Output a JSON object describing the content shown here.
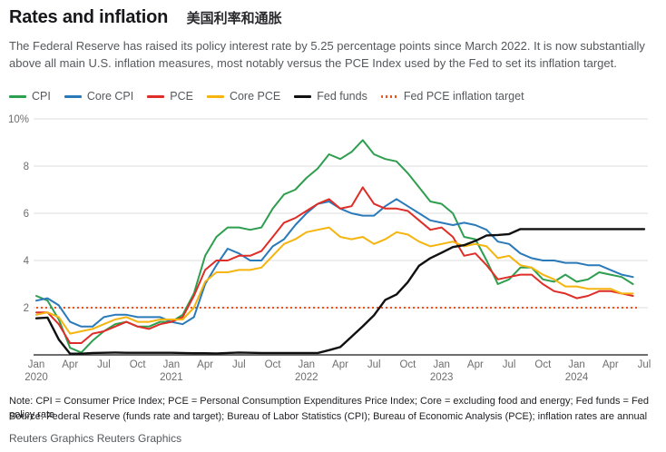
{
  "header": {
    "title": "Rates and inflation",
    "title_zh": "美国利率和通胀",
    "description": "The Federal Reserve has raised its policy interest rate by 5.25 percentage points since March 2022. It is now substantially above all main U.S. inflation measures, most notably versus the PCE Index used by the Fed to set its inflation target."
  },
  "footer": {
    "note": "Note: CPI = Consumer Price Index; PCE = Personal Consumption Expenditures Price Index; Core = excluding food and energy; Fed funds = Fed policy rate",
    "source": "Source: Federal Reserve (funds rate and target); Bureau of Labor Statistics (CPI); Bureau of Economic Analysis (PCE); inflation rates are annual",
    "credit": "Reuters Graphics Reuters Graphics"
  },
  "chart_data": {
    "type": "line",
    "x_unit": "month",
    "x_start": "2020-01",
    "x_end": "2024-07",
    "ylim": [
      0,
      10
    ],
    "grid": true,
    "legend_position": "top",
    "yticks": [
      {
        "value": 10,
        "label": "10%"
      },
      {
        "value": 8,
        "label": "8"
      },
      {
        "value": 6,
        "label": "6"
      },
      {
        "value": 4,
        "label": "4"
      },
      {
        "value": 2,
        "label": "2"
      }
    ],
    "xticks": [
      {
        "m": 0,
        "label": "Jan",
        "year": "2020"
      },
      {
        "m": 3,
        "label": "Apr"
      },
      {
        "m": 6,
        "label": "Jul"
      },
      {
        "m": 9,
        "label": "Oct"
      },
      {
        "m": 12,
        "label": "Jan",
        "year": "2021"
      },
      {
        "m": 15,
        "label": "Apr"
      },
      {
        "m": 18,
        "label": "Jul"
      },
      {
        "m": 21,
        "label": "Oct"
      },
      {
        "m": 24,
        "label": "Jan",
        "year": "2022"
      },
      {
        "m": 27,
        "label": "Apr"
      },
      {
        "m": 30,
        "label": "Jul"
      },
      {
        "m": 33,
        "label": "Oct"
      },
      {
        "m": 36,
        "label": "Jan",
        "year": "2023"
      },
      {
        "m": 39,
        "label": "Apr"
      },
      {
        "m": 42,
        "label": "Jul"
      },
      {
        "m": 45,
        "label": "Oct"
      },
      {
        "m": 48,
        "label": "Jan",
        "year": "2024"
      },
      {
        "m": 51,
        "label": "Apr"
      },
      {
        "m": 54,
        "label": "Jul"
      }
    ],
    "series": [
      {
        "name": "CPI",
        "color": "#2e9e4f",
        "style": "solid",
        "width": 2,
        "values": [
          2.5,
          2.3,
          1.5,
          0.3,
          0.1,
          0.6,
          1.0,
          1.3,
          1.4,
          1.2,
          1.2,
          1.4,
          1.4,
          1.7,
          2.6,
          4.2,
          5.0,
          5.4,
          5.4,
          5.3,
          5.4,
          6.2,
          6.8,
          7.0,
          7.5,
          7.9,
          8.5,
          8.3,
          8.6,
          9.1,
          8.5,
          8.3,
          8.2,
          7.7,
          7.1,
          6.5,
          6.4,
          6.0,
          5.0,
          4.9,
          4.0,
          3.0,
          3.2,
          3.7,
          3.7,
          3.2,
          3.1,
          3.4,
          3.1,
          3.2,
          3.5,
          3.4,
          3.3,
          3.0
        ]
      },
      {
        "name": "Core CPI",
        "color": "#2a7ab9",
        "style": "solid",
        "width": 2,
        "values": [
          2.3,
          2.4,
          2.1,
          1.4,
          1.2,
          1.2,
          1.6,
          1.7,
          1.7,
          1.6,
          1.6,
          1.6,
          1.4,
          1.3,
          1.6,
          3.0,
          3.8,
          4.5,
          4.3,
          4.0,
          4.0,
          4.6,
          4.9,
          5.5,
          6.0,
          6.4,
          6.5,
          6.2,
          6.0,
          5.9,
          5.9,
          6.3,
          6.6,
          6.3,
          6.0,
          5.7,
          5.6,
          5.5,
          5.6,
          5.5,
          5.3,
          4.8,
          4.7,
          4.3,
          4.1,
          4.0,
          4.0,
          3.9,
          3.9,
          3.8,
          3.8,
          3.6,
          3.4,
          3.3
        ]
      },
      {
        "name": "PCE",
        "color": "#df2d27",
        "style": "solid",
        "width": 2,
        "values": [
          1.8,
          1.8,
          1.3,
          0.5,
          0.5,
          0.9,
          1.0,
          1.2,
          1.4,
          1.2,
          1.1,
          1.3,
          1.4,
          1.6,
          2.5,
          3.6,
          4.0,
          4.0,
          4.2,
          4.2,
          4.4,
          5.0,
          5.6,
          5.8,
          6.1,
          6.4,
          6.6,
          6.2,
          6.3,
          7.1,
          6.4,
          6.2,
          6.2,
          6.1,
          5.7,
          5.3,
          5.4,
          5.0,
          4.2,
          4.3,
          3.8,
          3.2,
          3.3,
          3.4,
          3.4,
          3.0,
          2.7,
          2.6,
          2.4,
          2.5,
          2.7,
          2.7,
          2.6,
          2.5
        ]
      },
      {
        "name": "Core PCE",
        "color": "#f5b40e",
        "style": "solid",
        "width": 2,
        "values": [
          1.7,
          1.8,
          1.6,
          0.9,
          1.0,
          1.1,
          1.3,
          1.5,
          1.6,
          1.4,
          1.4,
          1.5,
          1.5,
          1.5,
          2.0,
          3.1,
          3.5,
          3.5,
          3.6,
          3.6,
          3.7,
          4.2,
          4.7,
          4.9,
          5.2,
          5.3,
          5.4,
          5.0,
          4.9,
          5.0,
          4.7,
          4.9,
          5.2,
          5.1,
          4.8,
          4.6,
          4.7,
          4.8,
          4.6,
          4.7,
          4.6,
          4.1,
          4.2,
          3.8,
          3.7,
          3.4,
          3.2,
          2.9,
          2.9,
          2.8,
          2.8,
          2.8,
          2.6,
          2.6
        ]
      },
      {
        "name": "Fed funds",
        "color": "#101010",
        "style": "solid",
        "width": 2.4,
        "values": [
          1.55,
          1.58,
          0.65,
          0.05,
          0.05,
          0.08,
          0.09,
          0.1,
          0.09,
          0.09,
          0.09,
          0.09,
          0.09,
          0.08,
          0.07,
          0.07,
          0.06,
          0.08,
          0.1,
          0.09,
          0.08,
          0.08,
          0.08,
          0.08,
          0.08,
          0.08,
          0.2,
          0.33,
          0.77,
          1.21,
          1.68,
          2.33,
          2.56,
          3.08,
          3.78,
          4.1,
          4.33,
          4.57,
          4.65,
          4.83,
          5.06,
          5.08,
          5.12,
          5.33,
          5.33,
          5.33,
          5.33,
          5.33,
          5.33,
          5.33,
          5.33,
          5.33,
          5.33,
          5.33,
          5.33
        ]
      },
      {
        "name": "Fed PCE inflation target",
        "color": "#ea5420",
        "style": "dotted",
        "width": 2,
        "constant": 2
      }
    ]
  }
}
